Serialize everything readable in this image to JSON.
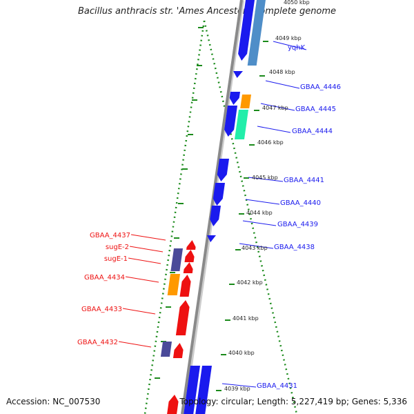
{
  "title": "Bacillus anthracis str. 'Ames Ancestor', complete genome",
  "footer": {
    "accession": "Accession: NC_007530",
    "topology": "Topology: circular; Length: 5,227,419 bp; Genes: 5,336"
  },
  "kbp_labels": [
    "4050 kbp",
    "4049 kbp",
    "4048 kbp",
    "4047 kbp",
    "4046 kbp",
    "4045 kbp",
    "4044 kbp",
    "4043 kbp",
    "4042 kbp",
    "4041 kbp",
    "4040 kbp",
    "4039 kbp"
  ],
  "forward_labels": [
    "yqhK",
    "GBAA_4446",
    "GBAA_4445",
    "GBAA_4444",
    "GBAA_4441",
    "GBAA_4440",
    "GBAA_4439",
    "GBAA_4438",
    "GBAA_4431"
  ],
  "reverse_labels": [
    "GBAA_4437",
    "sugE-2",
    "sugE-1",
    "GBAA_4434",
    "GBAA_4433",
    "GBAA_4432"
  ],
  "colors": {
    "forward_cds": "#1a1aee",
    "reverse_cds": "#ee1111",
    "rna": "#4a4a99",
    "orange": "#ff9900",
    "teal": "#22eeaa",
    "steel": "#4f8ec8",
    "backbone": "#888888",
    "gc_dots": "#1a8a1a"
  }
}
